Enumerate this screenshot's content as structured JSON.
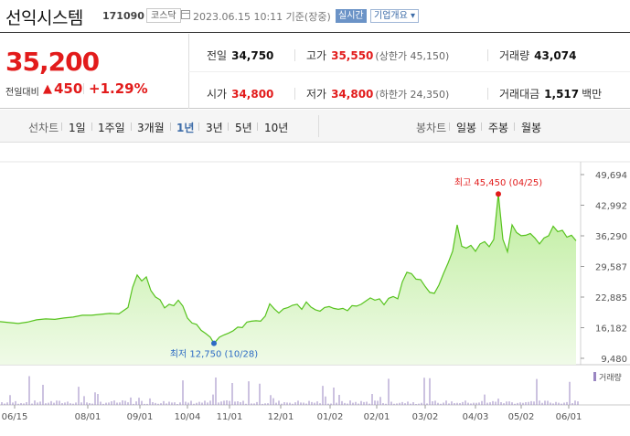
{
  "header": {
    "name": "선익시스템",
    "code": "171090",
    "market": "코스닥",
    "timestamp": "2023.06.15 10:11  기준(장중)",
    "realtime": "실시간",
    "overview": "기업개요 ▾"
  },
  "price": {
    "current": "35,200",
    "compare_label": "전일대비",
    "arrow": "▲",
    "change": "450",
    "percent": "+1.29%"
  },
  "stats": {
    "prev_label": "전일",
    "prev": "34,750",
    "high_label": "고가",
    "high": "35,550",
    "upper_limit": "(상한가 45,150)",
    "volume_label": "거래량",
    "volume": "43,074",
    "open_label": "시가",
    "open": "34,800",
    "low_label": "저가",
    "low": "34,800",
    "lower_limit": "(하한가 24,350)",
    "amount_label": "거래대금",
    "amount": "1,517",
    "amount_unit": "백만"
  },
  "tabs": {
    "line_label": "선차트",
    "periods": [
      "1일",
      "1주일",
      "3개월",
      "1년",
      "3년",
      "5년",
      "10년"
    ],
    "active_period": "1년",
    "candle_label": "봉차트",
    "candles": [
      "일봉",
      "주봉",
      "월봉"
    ]
  },
  "chart_data": {
    "type": "area",
    "y_ticks": [
      "49,694",
      "42,992",
      "36,290",
      "29,587",
      "22,885",
      "16,182",
      "9,480"
    ],
    "ylim": [
      9480,
      49694
    ],
    "x_ticks": [
      "06/15",
      "08/01",
      "09/01",
      "10/04",
      "11/01",
      "12/01",
      "01/02",
      "02/01",
      "03/02",
      "04/03",
      "05/02",
      "06/01"
    ],
    "max_annotation": "최고 45,450 (04/25)",
    "min_annotation": "최저 12,750 (10/28)",
    "volume_label": "거래량",
    "price_series": [
      [
        0,
        17500
      ],
      [
        10,
        17300
      ],
      [
        20,
        17100
      ],
      [
        30,
        17400
      ],
      [
        40,
        17900
      ],
      [
        50,
        18100
      ],
      [
        60,
        18000
      ],
      [
        70,
        18300
      ],
      [
        80,
        18500
      ],
      [
        90,
        18900
      ],
      [
        100,
        18900
      ],
      [
        110,
        19100
      ],
      [
        120,
        19300
      ],
      [
        130,
        19200
      ],
      [
        140,
        20600
      ],
      [
        145,
        25000
      ],
      [
        150,
        27700
      ],
      [
        155,
        26400
      ],
      [
        160,
        27300
      ],
      [
        165,
        24300
      ],
      [
        170,
        22900
      ],
      [
        175,
        22300
      ],
      [
        180,
        20500
      ],
      [
        185,
        21300
      ],
      [
        190,
        21000
      ],
      [
        195,
        22200
      ],
      [
        200,
        20900
      ],
      [
        205,
        18300
      ],
      [
        210,
        17200
      ],
      [
        215,
        16900
      ],
      [
        220,
        15600
      ],
      [
        225,
        14900
      ],
      [
        230,
        14100
      ],
      [
        234,
        12750
      ],
      [
        240,
        14100
      ],
      [
        245,
        14600
      ],
      [
        250,
        15000
      ],
      [
        255,
        15500
      ],
      [
        260,
        16300
      ],
      [
        265,
        16200
      ],
      [
        270,
        17400
      ],
      [
        275,
        17600
      ],
      [
        280,
        17700
      ],
      [
        285,
        17600
      ],
      [
        290,
        18700
      ],
      [
        295,
        21400
      ],
      [
        300,
        20300
      ],
      [
        305,
        19400
      ],
      [
        310,
        20300
      ],
      [
        315,
        20600
      ],
      [
        320,
        21100
      ],
      [
        325,
        21300
      ],
      [
        330,
        20200
      ],
      [
        335,
        21800
      ],
      [
        340,
        20700
      ],
      [
        345,
        20100
      ],
      [
        350,
        19800
      ],
      [
        355,
        20600
      ],
      [
        360,
        20800
      ],
      [
        365,
        20400
      ],
      [
        370,
        20200
      ],
      [
        375,
        20400
      ],
      [
        380,
        19900
      ],
      [
        385,
        21000
      ],
      [
        390,
        20900
      ],
      [
        395,
        21300
      ],
      [
        400,
        22000
      ],
      [
        405,
        22700
      ],
      [
        410,
        22200
      ],
      [
        415,
        22500
      ],
      [
        420,
        21200
      ],
      [
        425,
        22600
      ],
      [
        430,
        23000
      ],
      [
        435,
        22500
      ],
      [
        440,
        26200
      ],
      [
        445,
        28300
      ],
      [
        450,
        28000
      ],
      [
        455,
        26800
      ],
      [
        460,
        26700
      ],
      [
        465,
        25200
      ],
      [
        470,
        23900
      ],
      [
        475,
        23700
      ],
      [
        480,
        25500
      ],
      [
        485,
        28000
      ],
      [
        490,
        30300
      ],
      [
        495,
        32900
      ],
      [
        500,
        38700
      ],
      [
        505,
        34000
      ],
      [
        510,
        33600
      ],
      [
        515,
        34200
      ],
      [
        520,
        32900
      ],
      [
        525,
        34500
      ],
      [
        530,
        35000
      ],
      [
        535,
        33900
      ],
      [
        540,
        35500
      ],
      [
        545,
        45450
      ],
      [
        550,
        35500
      ],
      [
        555,
        32800
      ],
      [
        560,
        38700
      ],
      [
        565,
        37000
      ],
      [
        570,
        36300
      ],
      [
        575,
        36400
      ],
      [
        580,
        36800
      ],
      [
        585,
        35800
      ],
      [
        590,
        34500
      ],
      [
        595,
        35800
      ],
      [
        600,
        36300
      ],
      [
        605,
        38400
      ],
      [
        610,
        37200
      ],
      [
        615,
        37500
      ],
      [
        620,
        36000
      ],
      [
        625,
        36400
      ],
      [
        630,
        35200
      ]
    ]
  }
}
